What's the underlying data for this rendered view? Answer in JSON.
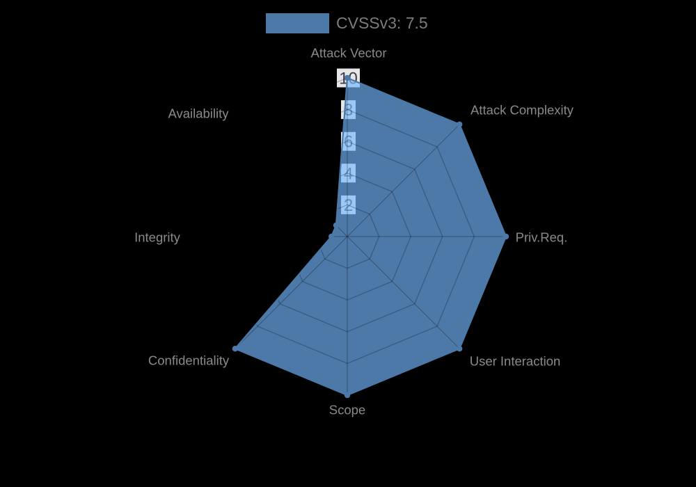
{
  "chart_data": {
    "type": "radar",
    "legend": {
      "label": "CVSSv3: 7.5",
      "position": "top-center"
    },
    "axes": [
      "Attack Vector",
      "Attack Complexity",
      "Priv.Req.",
      "User Interaction",
      "Scope",
      "Confidentiality",
      "Integrity",
      "Availability"
    ],
    "series": [
      {
        "name": "CVSSv3: 7.5",
        "values": [
          10,
          10,
          10,
          10,
          10,
          10,
          1,
          1
        ]
      }
    ],
    "radial_ticks": [
      2,
      4,
      6,
      8,
      10
    ],
    "range": [
      0,
      10
    ],
    "grid": true,
    "colors": {
      "background": "#000000",
      "series_solid": "#4d79a8",
      "series_fill": "rgba(117,183,255,0.66)",
      "grid_line": "rgba(0,0,0,0.25)",
      "tick_box": "rgba(255,255,255,0.9)",
      "tick_text": "#3a3f46",
      "axis_label": "#8a8a8a",
      "legend_text": "#7c7c7c"
    }
  }
}
